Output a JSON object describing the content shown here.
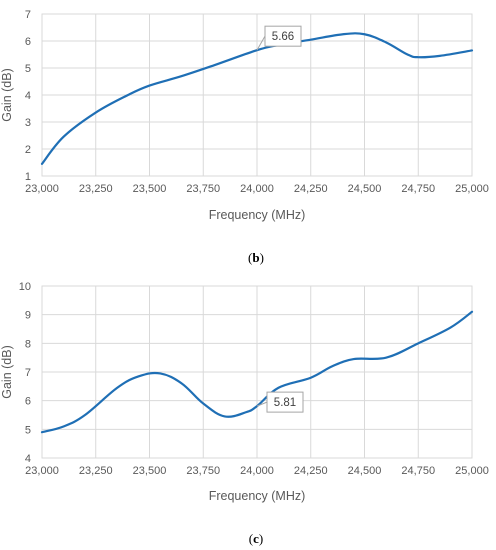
{
  "chart_data": [
    {
      "type": "line",
      "panel_label": "b",
      "xlabel": "Frequency (MHz)",
      "ylabel": "Gain (dB)",
      "xlim": [
        23000,
        25000
      ],
      "ylim": [
        1,
        7
      ],
      "xticks": [
        23000,
        23250,
        23500,
        23750,
        24000,
        24250,
        24500,
        24750,
        25000
      ],
      "xtick_labels": [
        "23,000",
        "23,250",
        "23,500",
        "23,750",
        "24,000",
        "24,250",
        "24,500",
        "24,750",
        "25,000"
      ],
      "yticks": [
        1,
        2,
        3,
        4,
        5,
        6,
        7
      ],
      "grid": true,
      "line_color": "#1f6fb5",
      "series": [
        {
          "x": [
            23000,
            23100,
            23250,
            23400,
            23500,
            23650,
            23800,
            24000,
            24100,
            24250,
            24400,
            24500,
            24600,
            24700,
            24750,
            24850,
            25000
          ],
          "y": [
            1.45,
            2.45,
            3.35,
            4.0,
            4.35,
            4.7,
            5.1,
            5.66,
            5.85,
            6.05,
            6.25,
            6.25,
            5.95,
            5.5,
            5.4,
            5.45,
            5.65
          ]
        }
      ],
      "annotation": {
        "text": "5.66",
        "x": 24000,
        "y": 5.66
      }
    },
    {
      "type": "line",
      "panel_label": "c",
      "xlabel": "Frequency (MHz)",
      "ylabel": "Gain (dB)",
      "xlim": [
        23000,
        25000
      ],
      "ylim": [
        4,
        10
      ],
      "xticks": [
        23000,
        23250,
        23500,
        23750,
        24000,
        24250,
        24500,
        24750,
        25000
      ],
      "xtick_labels": [
        "23,000",
        "23,250",
        "23,500",
        "23,750",
        "24,000",
        "24,250",
        "24,500",
        "24,750",
        "25,000"
      ],
      "yticks": [
        4,
        5,
        6,
        7,
        8,
        9,
        10
      ],
      "grid": true,
      "line_color": "#1f6fb5",
      "series": [
        {
          "x": [
            23000,
            23100,
            23200,
            23350,
            23450,
            23550,
            23650,
            23750,
            23850,
            23950,
            24000,
            24100,
            24250,
            24350,
            24450,
            24600,
            24750,
            24900,
            25000
          ],
          "y": [
            4.9,
            5.1,
            5.5,
            6.45,
            6.85,
            6.95,
            6.6,
            5.9,
            5.45,
            5.6,
            5.81,
            6.45,
            6.8,
            7.2,
            7.45,
            7.5,
            8.0,
            8.55,
            9.1
          ]
        }
      ],
      "annotation": {
        "text": "5.81",
        "x": 24000,
        "y": 5.81
      }
    }
  ]
}
